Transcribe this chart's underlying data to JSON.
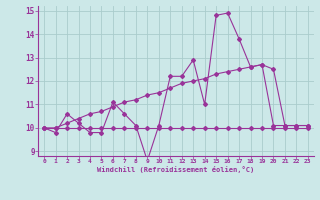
{
  "xlabel": "Windchill (Refroidissement éolien,°C)",
  "x": [
    0,
    1,
    2,
    3,
    4,
    5,
    6,
    7,
    8,
    9,
    10,
    11,
    12,
    13,
    14,
    15,
    16,
    17,
    18,
    19,
    20,
    21,
    22,
    23
  ],
  "y_line1": [
    10.0,
    9.8,
    10.6,
    10.2,
    9.8,
    9.8,
    11.1,
    10.6,
    10.1,
    8.6,
    10.1,
    12.2,
    12.2,
    12.9,
    11.0,
    14.8,
    14.9,
    13.8,
    12.6,
    12.7,
    10.1,
    10.1,
    10.1,
    10.1
  ],
  "y_line2": [
    10.0,
    10.0,
    10.0,
    10.0,
    10.0,
    10.0,
    10.0,
    10.0,
    10.0,
    10.0,
    10.0,
    10.0,
    10.0,
    10.0,
    10.0,
    10.0,
    10.0,
    10.0,
    10.0,
    10.0,
    10.0,
    10.0,
    10.0,
    10.0
  ],
  "y_line3": [
    10.0,
    10.0,
    10.2,
    10.4,
    10.6,
    10.7,
    10.9,
    11.1,
    11.2,
    11.4,
    11.5,
    11.7,
    11.9,
    12.0,
    12.1,
    12.3,
    12.4,
    12.5,
    12.6,
    12.7,
    12.5,
    10.1,
    10.1,
    10.1
  ],
  "line_color": "#993399",
  "bg_color": "#cce8e8",
  "grid_color": "#aacccc",
  "ylim": [
    8.8,
    15.2
  ],
  "xlim": [
    -0.5,
    23.5
  ],
  "yticks": [
    9,
    10,
    11,
    12,
    13,
    14,
    15
  ],
  "xticks": [
    0,
    1,
    2,
    3,
    4,
    5,
    6,
    7,
    8,
    9,
    10,
    11,
    12,
    13,
    14,
    15,
    16,
    17,
    18,
    19,
    20,
    21,
    22,
    23
  ]
}
